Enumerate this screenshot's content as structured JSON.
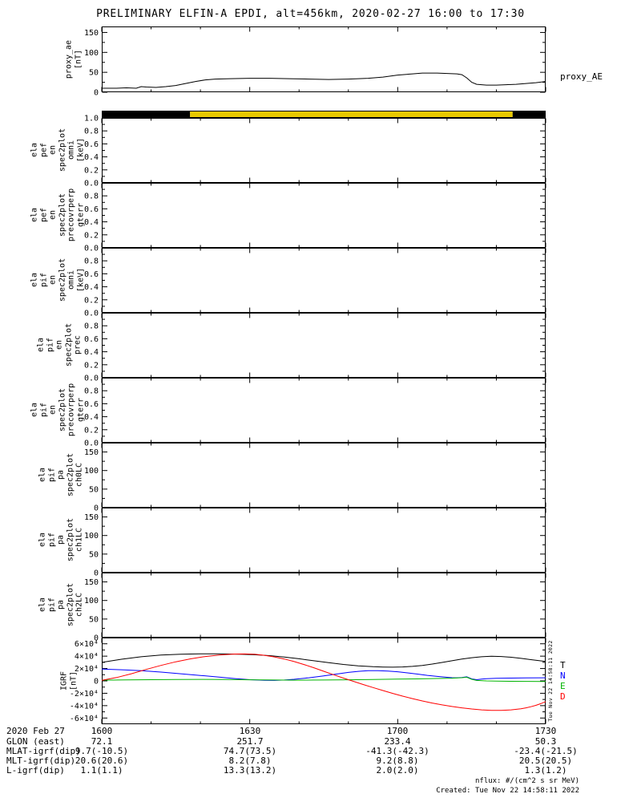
{
  "title": "PRELIMINARY ELFIN-A EPDI, alt=456km, 2020-02-27 16:00 to 17:30",
  "time_axis": {
    "xlim_minutes": [
      0,
      90
    ],
    "major_minutes": [
      0,
      30,
      60,
      90
    ],
    "minor_minutes": [
      10,
      20,
      40,
      50,
      70,
      80
    ]
  },
  "chart_data": [
    {
      "id": "proxy_ae",
      "type": "line",
      "ylabel": "proxy_ae\n[nT]",
      "right_label": "proxy_AE",
      "yrange": [
        0,
        165
      ],
      "yticks": [
        0,
        50,
        100,
        150
      ],
      "ytick_labels": [
        "0",
        "50",
        "100",
        "150"
      ],
      "series": [
        {
          "name": "proxy_AE",
          "color": "#000000",
          "points": [
            [
              0,
              10
            ],
            [
              3,
              10
            ],
            [
              5,
              11
            ],
            [
              7,
              10
            ],
            [
              8,
              14
            ],
            [
              9,
              13
            ],
            [
              11,
              12
            ],
            [
              13,
              14
            ],
            [
              15,
              17
            ],
            [
              17,
              22
            ],
            [
              19,
              27
            ],
            [
              21,
              31
            ],
            [
              23,
              33
            ],
            [
              26,
              34
            ],
            [
              30,
              35
            ],
            [
              34,
              35
            ],
            [
              38,
              34
            ],
            [
              42,
              33
            ],
            [
              46,
              32
            ],
            [
              50,
              33
            ],
            [
              54,
              35
            ],
            [
              57,
              38
            ],
            [
              60,
              43
            ],
            [
              63,
              46
            ],
            [
              65,
              48
            ],
            [
              68,
              48
            ],
            [
              70,
              47
            ],
            [
              72,
              46
            ],
            [
              73,
              44
            ],
            [
              74,
              36
            ],
            [
              75,
              25
            ],
            [
              76,
              20
            ],
            [
              78,
              18
            ],
            [
              80,
              18
            ],
            [
              82,
              19
            ],
            [
              84,
              20
            ],
            [
              86,
              22
            ],
            [
              88,
              24
            ],
            [
              90,
              27
            ]
          ]
        }
      ]
    },
    {
      "id": "fast_bar",
      "type": "segments",
      "segments": [
        {
          "start": 0,
          "end": 17.9,
          "color": "#000000"
        },
        {
          "start": 17.9,
          "end": 83.3,
          "color": "#e8c800"
        },
        {
          "start": 83.3,
          "end": 90,
          "color": "#000000"
        }
      ]
    },
    {
      "id": "pef_en_omni",
      "type": "empty",
      "ylabel": "ela\npef\nen\nspec2plot\nomni\n[keV]",
      "yrange": [
        0,
        1
      ],
      "yticks": [
        0,
        0.2,
        0.4,
        0.6,
        0.8,
        1
      ],
      "ytick_labels": [
        "0.0",
        "0.2",
        "0.4",
        "0.6",
        "0.8",
        "1.0"
      ]
    },
    {
      "id": "pef_en_precovrperp",
      "type": "empty",
      "ylabel": "ela\npef\nen\nspec2plot\nprecovrperp\ngterr",
      "yrange": [
        0,
        1
      ],
      "yticks": [
        0,
        0.2,
        0.4,
        0.6,
        0.8,
        1
      ],
      "ytick_labels": [
        "0.0",
        "0.2",
        "0.4",
        "0.6",
        "0.8",
        ""
      ]
    },
    {
      "id": "pif_en_omni",
      "type": "empty",
      "ylabel": "ela\npif\nen\nspec2plot\nomni\n[keV]",
      "yrange": [
        0,
        1
      ],
      "yticks": [
        0,
        0.2,
        0.4,
        0.6,
        0.8,
        1
      ],
      "ytick_labels": [
        "0.0",
        "0.2",
        "0.4",
        "0.6",
        "0.8",
        ""
      ]
    },
    {
      "id": "pif_en_prec",
      "type": "empty",
      "ylabel": "ela\npif\nen\nspec2plot\nprec",
      "yrange": [
        0,
        1
      ],
      "yticks": [
        0,
        0.2,
        0.4,
        0.6,
        0.8,
        1
      ],
      "ytick_labels": [
        "0.0",
        "0.2",
        "0.4",
        "0.6",
        "0.8",
        ""
      ]
    },
    {
      "id": "pif_en_precovrperp",
      "type": "empty",
      "ylabel": "ela\npif\nen\nspec2plot\nprecovrperp\ngterr",
      "yrange": [
        0,
        1
      ],
      "yticks": [
        0,
        0.2,
        0.4,
        0.6,
        0.8,
        1
      ],
      "ytick_labels": [
        "0.0",
        "0.2",
        "0.4",
        "0.6",
        "0.8",
        ""
      ]
    },
    {
      "id": "pif_pa_ch0lc",
      "type": "empty",
      "ylabel": "ela\npif\npa\nspec2plot\nch0LC",
      "yrange": [
        0,
        175
      ],
      "yticks": [
        0,
        50,
        100,
        150
      ],
      "ytick_labels": [
        "0",
        "50",
        "100",
        "150"
      ]
    },
    {
      "id": "pif_pa_ch1lc",
      "type": "empty",
      "ylabel": "ela\npif\npa\nspec2plot\nch1LC",
      "yrange": [
        0,
        175
      ],
      "yticks": [
        0,
        50,
        100,
        150
      ],
      "ytick_labels": [
        "0",
        "50",
        "100",
        "150"
      ]
    },
    {
      "id": "pif_pa_ch2lc",
      "type": "empty",
      "ylabel": "ela\npif\npa\nspec2plot\nch2LC",
      "yrange": [
        0,
        175
      ],
      "yticks": [
        0,
        50,
        100,
        150
      ],
      "ytick_labels": [
        "0",
        "50",
        "100",
        "150"
      ]
    },
    {
      "id": "igrf",
      "type": "line",
      "legend": true,
      "ylabel": "IGRF\n[nT]",
      "yrange": [
        -70000,
        70000
      ],
      "yticks": [
        -60000,
        -40000,
        -20000,
        0,
        20000,
        40000,
        60000
      ],
      "ytick_labels": [
        "-6×10⁴",
        "-4×10⁴",
        "-2×10⁴",
        "0",
        "2×10⁴",
        "4×10⁴",
        "6×10⁴"
      ],
      "series": [
        {
          "name": "T",
          "color": "#000000",
          "points": [
            [
              0,
              30000
            ],
            [
              4,
              35000
            ],
            [
              8,
              39000
            ],
            [
              12,
              41800
            ],
            [
              16,
              43200
            ],
            [
              20,
              43700
            ],
            [
              24,
              43700
            ],
            [
              28,
              43200
            ],
            [
              31,
              42300
            ],
            [
              34,
              40800
            ],
            [
              37,
              38600
            ],
            [
              40,
              35800
            ],
            [
              43,
              32600
            ],
            [
              46,
              29400
            ],
            [
              49,
              26600
            ],
            [
              52,
              24400
            ],
            [
              55,
              23000
            ],
            [
              57,
              22400
            ],
            [
              59,
              22200
            ],
            [
              61,
              22500
            ],
            [
              63,
              23400
            ],
            [
              65,
              25000
            ],
            [
              67,
              27200
            ],
            [
              69,
              29800
            ],
            [
              71,
              32600
            ],
            [
              73,
              35200
            ],
            [
              75,
              37400
            ],
            [
              77,
              39000
            ],
            [
              79,
              39800
            ],
            [
              81,
              39400
            ],
            [
              83,
              38200
            ],
            [
              85,
              36400
            ],
            [
              87,
              34400
            ],
            [
              89,
              32400
            ],
            [
              90,
              31500
            ]
          ]
        },
        {
          "name": "N",
          "color": "#0000ff",
          "points": [
            [
              0,
              19000
            ],
            [
              4,
              18000
            ],
            [
              8,
              16400
            ],
            [
              12,
              14200
            ],
            [
              16,
              11600
            ],
            [
              20,
              8800
            ],
            [
              24,
              6000
            ],
            [
              27,
              3800
            ],
            [
              30,
              2000
            ],
            [
              33,
              1000
            ],
            [
              35,
              800
            ],
            [
              37,
              1400
            ],
            [
              39,
              2600
            ],
            [
              42,
              5000
            ],
            [
              45,
              8200
            ],
            [
              48,
              11600
            ],
            [
              50,
              13800
            ],
            [
              52,
              15400
            ],
            [
              54,
              16400
            ],
            [
              56,
              16600
            ],
            [
              58,
              16000
            ],
            [
              60,
              14800
            ],
            [
              62,
              13000
            ],
            [
              64,
              11000
            ],
            [
              66,
              9000
            ],
            [
              68,
              7200
            ],
            [
              70,
              5800
            ],
            [
              71,
              5200
            ],
            [
              72,
              5000
            ],
            [
              73,
              5600
            ],
            [
              74,
              6600
            ],
            [
              75,
              3200
            ],
            [
              76,
              2000
            ],
            [
              77,
              2800
            ],
            [
              78,
              3600
            ],
            [
              80,
              4200
            ],
            [
              83,
              4600
            ],
            [
              86,
              4800
            ],
            [
              90,
              5000
            ]
          ]
        },
        {
          "name": "E",
          "color": "#00b400",
          "points": [
            [
              0,
              1200
            ],
            [
              5,
              1600
            ],
            [
              10,
              2000
            ],
            [
              15,
              2300
            ],
            [
              20,
              2400
            ],
            [
              25,
              2200
            ],
            [
              30,
              1800
            ],
            [
              35,
              1400
            ],
            [
              40,
              1200
            ],
            [
              45,
              1400
            ],
            [
              50,
              1800
            ],
            [
              55,
              2300
            ],
            [
              60,
              2800
            ],
            [
              64,
              3300
            ],
            [
              68,
              3900
            ],
            [
              71,
              4400
            ],
            [
              73,
              5200
            ],
            [
              74,
              6000
            ],
            [
              75,
              2600
            ],
            [
              76,
              800
            ],
            [
              78,
              0
            ],
            [
              80,
              -300
            ],
            [
              83,
              -600
            ],
            [
              86,
              -800
            ],
            [
              90,
              -1000
            ]
          ]
        },
        {
          "name": "D",
          "color": "#ff0000",
          "points": [
            [
              0,
              1000
            ],
            [
              3,
              5500
            ],
            [
              6,
              11500
            ],
            [
              9,
              18500
            ],
            [
              12,
              25000
            ],
            [
              15,
              30800
            ],
            [
              18,
              35600
            ],
            [
              21,
              39400
            ],
            [
              24,
              42000
            ],
            [
              27,
              43400
            ],
            [
              29,
              43600
            ],
            [
              31,
              43000
            ],
            [
              33,
              41400
            ],
            [
              35,
              38800
            ],
            [
              37,
              35400
            ],
            [
              39,
              31200
            ],
            [
              41,
              26400
            ],
            [
              43,
              21200
            ],
            [
              45,
              15600
            ],
            [
              47,
              10000
            ],
            [
              49,
              4600
            ],
            [
              51,
              -600
            ],
            [
              53,
              -5800
            ],
            [
              55,
              -10800
            ],
            [
              57,
              -15600
            ],
            [
              59,
              -20200
            ],
            [
              61,
              -24600
            ],
            [
              63,
              -28600
            ],
            [
              65,
              -32400
            ],
            [
              67,
              -35800
            ],
            [
              69,
              -38800
            ],
            [
              71,
              -41400
            ],
            [
              73,
              -43600
            ],
            [
              75,
              -45400
            ],
            [
              77,
              -46800
            ],
            [
              79,
              -47600
            ],
            [
              81,
              -47600
            ],
            [
              83,
              -46800
            ],
            [
              85,
              -45000
            ],
            [
              86,
              -43600
            ],
            [
              87,
              -41800
            ],
            [
              88,
              -39600
            ],
            [
              89,
              -36800
            ],
            [
              90,
              -33500
            ]
          ]
        }
      ]
    }
  ],
  "table": {
    "rows": [
      {
        "label": "2020 Feb 27",
        "values": [
          "1600",
          "1630",
          "1700",
          "1730"
        ]
      },
      {
        "label": "GLON (east)",
        "values": [
          "72.1",
          "251.7",
          "233.4",
          "50.3"
        ]
      },
      {
        "label": "MLAT-igrf(dip)",
        "values": [
          "9.7(-10.5)",
          "74.7(73.5)",
          "-41.3(-42.3)",
          "-23.4(-21.5)"
        ]
      },
      {
        "label": "MLT-igrf(dip)",
        "values": [
          "20.6(20.6)",
          "8.2(7.8)",
          "9.2(8.8)",
          "20.5(20.5)"
        ]
      },
      {
        "label": "L-igrf(dip)",
        "values": [
          "1.1(1.1)",
          "13.3(13.2)",
          "2.0(2.0)",
          "1.3(1.2)"
        ]
      }
    ]
  },
  "footer": {
    "nflux": "nflux: #/(cm^2 s sr MeV)",
    "created": "Created: Tue Nov 22 14:58:11 2022",
    "created_vertical": "Tue Nov 22 14:58:11 2022"
  }
}
